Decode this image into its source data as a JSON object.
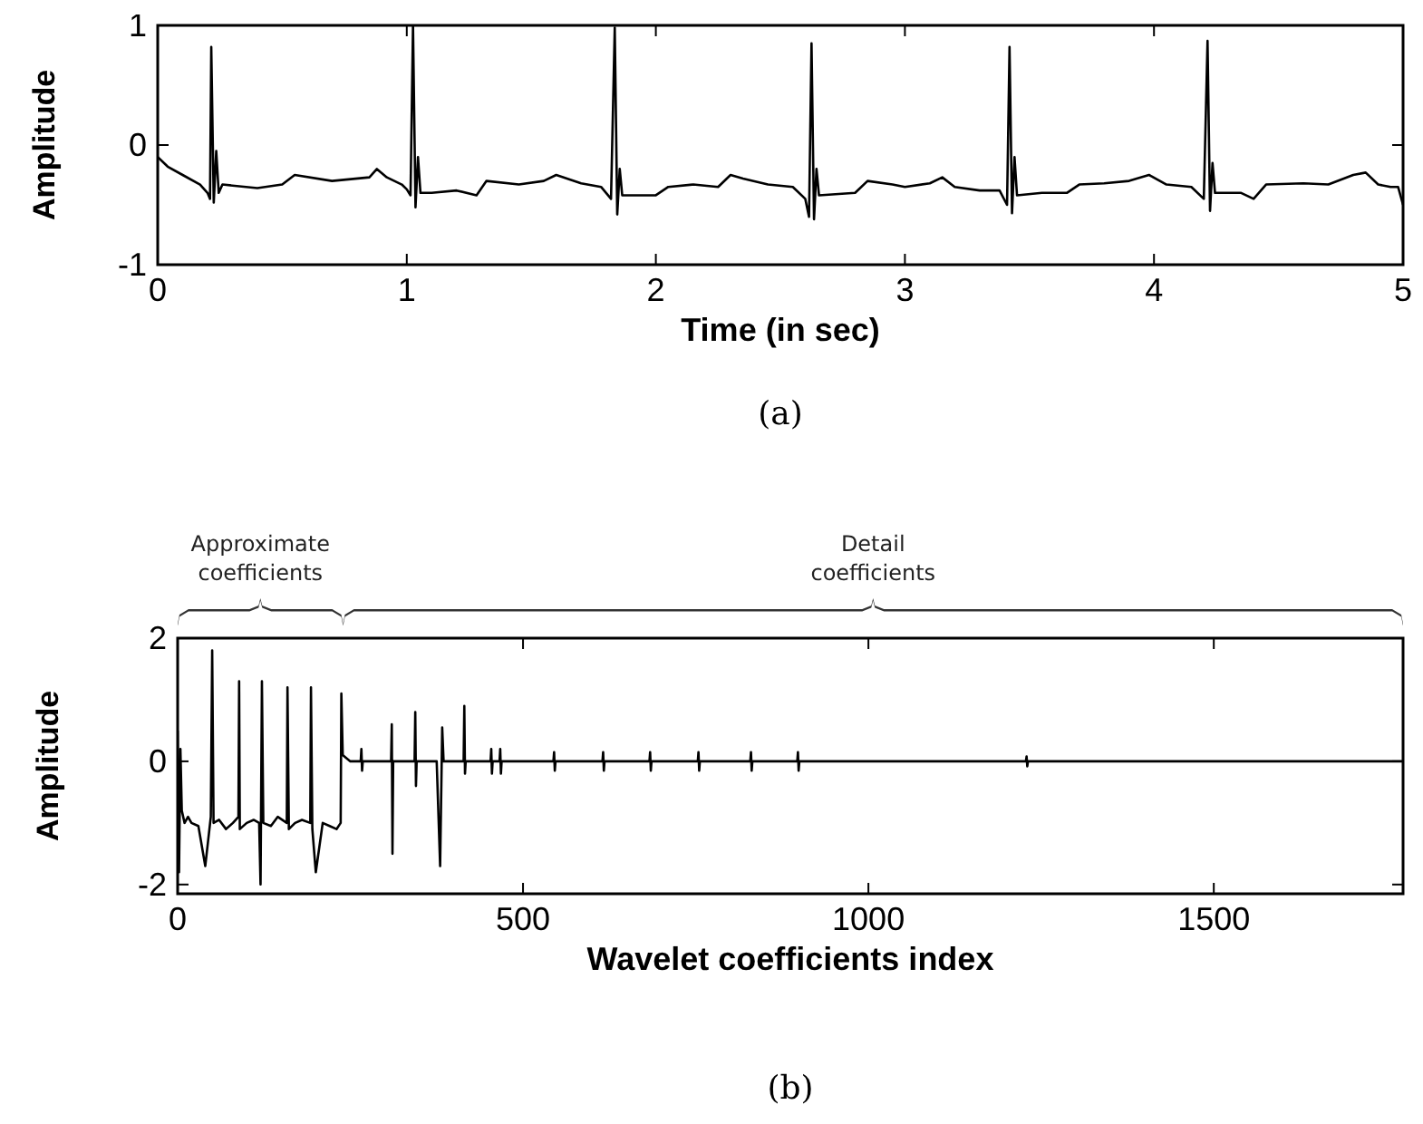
{
  "chart_data": [
    {
      "type": "line",
      "xlabel": "Time (in sec)",
      "ylabel": "Amplitude",
      "xlim": [
        0,
        5
      ],
      "ylim": [
        -1,
        1
      ],
      "xticks": [
        0,
        1,
        2,
        3,
        4,
        5
      ],
      "yticks": [
        -1,
        0,
        1
      ],
      "annotations": [
        "(a)"
      ],
      "series": [
        {
          "color": "#000000",
          "x": [
            0,
            0.04,
            0.1,
            0.17,
            0.2,
            0.21,
            0.215,
            0.225,
            0.235,
            0.245,
            0.26,
            0.4,
            0.5,
            0.55,
            0.7,
            0.85,
            0.88,
            0.92,
            0.98,
            1.0,
            1.015,
            1.025,
            1.035,
            1.045,
            1.055,
            1.1,
            1.2,
            1.28,
            1.32,
            1.45,
            1.55,
            1.6,
            1.7,
            1.78,
            1.82,
            1.835,
            1.845,
            1.855,
            1.865,
            2.0,
            2.05,
            2.15,
            2.25,
            2.3,
            2.35,
            2.45,
            2.55,
            2.6,
            2.615,
            2.625,
            2.635,
            2.645,
            2.655,
            2.8,
            2.85,
            2.95,
            3.0,
            3.1,
            3.15,
            3.2,
            3.3,
            3.38,
            3.41,
            3.42,
            3.43,
            3.44,
            3.45,
            3.55,
            3.65,
            3.7,
            3.8,
            3.9,
            3.98,
            4.05,
            4.15,
            4.2,
            4.215,
            4.225,
            4.235,
            4.245,
            4.35,
            4.4,
            4.45,
            4.6,
            4.7,
            4.8,
            4.85,
            4.9,
            4.95,
            4.98,
            5.0
          ],
          "values": [
            -0.1,
            -0.18,
            -0.25,
            -0.33,
            -0.4,
            -0.45,
            0.82,
            -0.48,
            -0.05,
            -0.4,
            -0.33,
            -0.36,
            -0.33,
            -0.25,
            -0.3,
            -0.27,
            -0.2,
            -0.27,
            -0.33,
            -0.37,
            -0.42,
            1.0,
            -0.52,
            -0.1,
            -0.4,
            -0.4,
            -0.38,
            -0.42,
            -0.3,
            -0.33,
            -0.3,
            -0.25,
            -0.32,
            -0.35,
            -0.45,
            0.98,
            -0.58,
            -0.2,
            -0.42,
            -0.42,
            -0.35,
            -0.33,
            -0.35,
            -0.25,
            -0.28,
            -0.33,
            -0.35,
            -0.45,
            -0.6,
            0.85,
            -0.62,
            -0.2,
            -0.42,
            -0.4,
            -0.3,
            -0.33,
            -0.35,
            -0.32,
            -0.27,
            -0.35,
            -0.38,
            -0.38,
            -0.5,
            0.82,
            -0.57,
            -0.1,
            -0.42,
            -0.4,
            -0.4,
            -0.33,
            -0.32,
            -0.3,
            -0.25,
            -0.33,
            -0.35,
            -0.45,
            0.87,
            -0.55,
            -0.15,
            -0.4,
            -0.4,
            -0.45,
            -0.33,
            -0.32,
            -0.33,
            -0.25,
            -0.23,
            -0.33,
            -0.35,
            -0.35,
            -0.5
          ]
        }
      ]
    },
    {
      "type": "line",
      "xlabel": "Wavelet coefficients index",
      "ylabel": "Amplitude",
      "xlim": [
        0,
        1774
      ],
      "ylim": [
        -2.15,
        2
      ],
      "xticks": [
        0,
        500,
        1000,
        1500
      ],
      "yticks": [
        -2,
        0,
        2
      ],
      "annotations": [
        "Approximate coefficients",
        "Detail coefficients",
        "(b)"
      ],
      "series": [
        {
          "color": "#000000",
          "x": [
            0,
            2,
            4,
            6,
            10,
            15,
            20,
            30,
            40,
            48,
            50,
            52,
            60,
            70,
            80,
            88,
            89,
            90,
            100,
            110,
            118,
            120,
            122,
            124,
            135,
            145,
            158,
            159,
            161,
            170,
            180,
            192,
            193,
            195,
            200,
            210,
            220,
            230,
            236,
            237,
            239,
            250,
            265,
            266,
            267,
            268,
            300,
            309,
            310,
            311,
            312,
            343,
            344,
            345,
            346,
            375,
            380,
            383,
            385,
            414,
            415,
            416,
            417,
            453,
            454,
            455,
            456,
            466,
            467,
            468,
            469,
            544,
            545,
            546,
            547,
            615,
            616,
            617,
            618,
            683,
            684,
            685,
            686,
            753,
            754,
            755,
            756,
            829,
            830,
            831,
            832,
            897,
            898,
            899,
            900,
            1228,
            1229,
            1230,
            1231,
            1774
          ],
          "values": [
            0.5,
            -1.8,
            0.2,
            -0.8,
            -1.0,
            -0.9,
            -1.0,
            -1.05,
            -1.7,
            -0.9,
            1.8,
            -1.0,
            -0.95,
            -1.1,
            -1.0,
            -0.9,
            1.3,
            -1.1,
            -1.0,
            -0.95,
            -1.0,
            -2.0,
            1.3,
            -1.0,
            -1.05,
            -0.9,
            -1.0,
            1.2,
            -1.1,
            -1.0,
            -0.95,
            -1.0,
            1.2,
            -1.1,
            -1.8,
            -1.0,
            -1.05,
            -1.1,
            -1.0,
            1.1,
            0.1,
            0,
            0,
            0.2,
            -0.15,
            0,
            0,
            0,
            0.6,
            -1.5,
            0,
            0,
            0.8,
            -0.4,
            0,
            0,
            -1.7,
            0.55,
            0,
            0,
            0.9,
            -0.2,
            0,
            0,
            0.2,
            -0.2,
            0,
            0,
            0.2,
            -0.2,
            0,
            0,
            0.15,
            -0.15,
            0,
            0,
            0.15,
            -0.15,
            0,
            0,
            0.15,
            -0.15,
            0,
            0,
            0.15,
            -0.15,
            0,
            0,
            0.15,
            -0.15,
            0,
            0,
            0.15,
            -0.15,
            0,
            0,
            0.08,
            -0.08,
            0,
            0
          ]
        }
      ]
    }
  ]
}
